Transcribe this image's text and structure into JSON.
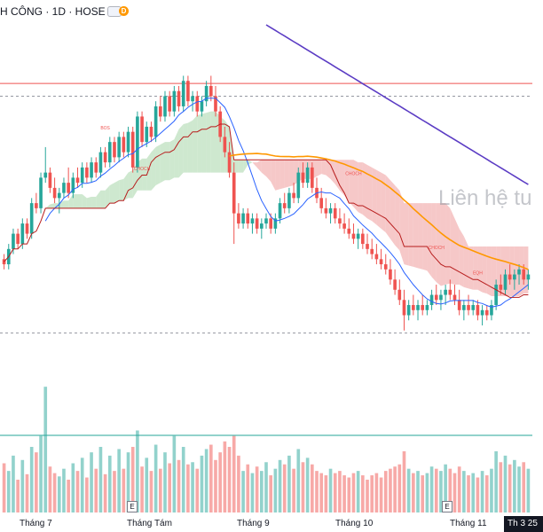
{
  "header": {
    "title": "H CÔNG · 1D · HOSE",
    "badge": "D"
  },
  "watermark": "Liên hệ tu",
  "xaxis": {
    "labels": [
      "Tháng 7",
      "Tháng Tám",
      "Tháng 9",
      "Tháng 10",
      "Tháng 11"
    ],
    "current_label": "Th 3 25",
    "event_marker": "E"
  },
  "annotations": {
    "bos": "BOS",
    "choch": "CHOCH",
    "eqh": "EQH"
  },
  "colors": {
    "up": "#26a69a",
    "down": "#ef5350",
    "ma_fast": "#2962ff",
    "ma_slow": "#ff9800",
    "ma_long": "#5b3cc4",
    "cloud_bull": "#a5d6a7",
    "cloud_bear": "#ef9a9a",
    "hline": "#ef5350",
    "teal_line": "#26a69a"
  },
  "chart_data": {
    "type": "candlestick",
    "sessions": 115,
    "candles": [
      [
        4.0,
        4.1,
        3.8,
        3.9
      ],
      [
        3.9,
        4.3,
        3.8,
        4.2
      ],
      [
        4.2,
        4.6,
        4.1,
        4.5
      ],
      [
        4.5,
        4.6,
        4.2,
        4.3
      ],
      [
        4.3,
        4.8,
        4.2,
        4.7
      ],
      [
        4.7,
        4.8,
        4.4,
        4.5
      ],
      [
        4.5,
        5.2,
        4.4,
        5.1
      ],
      [
        5.1,
        5.3,
        4.9,
        5.0
      ],
      [
        5.0,
        5.7,
        4.9,
        5.6
      ],
      [
        5.6,
        6.2,
        5.5,
        5.7
      ],
      [
        5.7,
        5.8,
        5.3,
        5.4
      ],
      [
        5.4,
        5.6,
        5.1,
        5.2
      ],
      [
        5.2,
        5.4,
        4.9,
        5.3
      ],
      [
        5.3,
        5.6,
        5.2,
        5.5
      ],
      [
        5.5,
        5.8,
        5.2,
        5.3
      ],
      [
        5.3,
        5.7,
        5.2,
        5.6
      ],
      [
        5.6,
        5.8,
        5.4,
        5.5
      ],
      [
        5.5,
        5.9,
        5.4,
        5.8
      ],
      [
        5.8,
        5.9,
        5.5,
        5.6
      ],
      [
        5.6,
        6.0,
        5.5,
        5.9
      ],
      [
        5.9,
        6.0,
        5.6,
        5.7
      ],
      [
        5.7,
        6.2,
        5.6,
        6.1
      ],
      [
        6.1,
        6.2,
        5.8,
        5.9
      ],
      [
        5.9,
        6.4,
        5.8,
        6.3
      ],
      [
        6.3,
        6.4,
        5.9,
        6.0
      ],
      [
        6.0,
        6.5,
        5.9,
        6.4
      ],
      [
        6.4,
        6.5,
        6.0,
        6.1
      ],
      [
        6.1,
        6.6,
        6.0,
        6.5
      ],
      [
        6.5,
        6.6,
        5.7,
        5.8
      ],
      [
        5.8,
        6.9,
        5.7,
        6.8
      ],
      [
        6.8,
        6.9,
        6.2,
        6.3
      ],
      [
        6.3,
        6.7,
        6.2,
        6.6
      ],
      [
        6.6,
        6.7,
        6.3,
        6.4
      ],
      [
        6.4,
        7.1,
        6.3,
        7.0
      ],
      [
        7.0,
        7.2,
        6.7,
        6.8
      ],
      [
        6.8,
        7.3,
        6.7,
        7.2
      ],
      [
        7.2,
        7.3,
        6.8,
        6.9
      ],
      [
        6.9,
        7.4,
        6.8,
        7.3
      ],
      [
        7.3,
        7.4,
        6.9,
        7.0
      ],
      [
        7.0,
        7.6,
        6.9,
        7.5
      ],
      [
        7.5,
        7.6,
        7.0,
        7.1
      ],
      [
        7.1,
        7.3,
        6.9,
        7.2
      ],
      [
        7.2,
        7.3,
        6.8,
        6.9
      ],
      [
        6.9,
        7.2,
        6.8,
        7.1
      ],
      [
        7.1,
        7.5,
        7.0,
        7.4
      ],
      [
        7.4,
        7.6,
        7.1,
        7.2
      ],
      [
        7.2,
        7.4,
        6.8,
        6.9
      ],
      [
        6.9,
        7.0,
        6.3,
        6.4
      ],
      [
        6.4,
        6.6,
        6.0,
        6.1
      ],
      [
        6.1,
        6.3,
        5.6,
        5.7
      ],
      [
        5.7,
        5.9,
        4.3,
        4.9
      ],
      [
        4.9,
        5.1,
        4.6,
        4.7
      ],
      [
        4.7,
        5.0,
        4.6,
        4.9
      ],
      [
        4.9,
        5.0,
        4.6,
        4.7
      ],
      [
        4.7,
        4.9,
        4.5,
        4.8
      ],
      [
        4.8,
        4.9,
        4.5,
        4.6
      ],
      [
        4.6,
        4.8,
        4.4,
        4.7
      ],
      [
        4.7,
        4.9,
        4.6,
        4.8
      ],
      [
        4.8,
        4.9,
        4.5,
        4.6
      ],
      [
        4.6,
        4.9,
        4.5,
        4.8
      ],
      [
        4.8,
        5.2,
        4.7,
        5.1
      ],
      [
        5.1,
        5.3,
        4.9,
        5.0
      ],
      [
        5.0,
        5.4,
        4.9,
        5.3
      ],
      [
        5.3,
        5.5,
        5.1,
        5.2
      ],
      [
        5.2,
        5.8,
        5.1,
        5.7
      ],
      [
        5.7,
        5.9,
        5.4,
        5.5
      ],
      [
        5.5,
        5.9,
        5.4,
        5.8
      ],
      [
        5.8,
        5.9,
        5.3,
        5.4
      ],
      [
        5.4,
        5.6,
        5.1,
        5.2
      ],
      [
        5.2,
        5.4,
        4.9,
        5.0
      ],
      [
        5.0,
        5.2,
        4.8,
        4.9
      ],
      [
        4.9,
        5.1,
        4.7,
        5.0
      ],
      [
        5.0,
        5.1,
        4.7,
        4.8
      ],
      [
        4.8,
        5.0,
        4.6,
        4.7
      ],
      [
        4.7,
        4.9,
        4.5,
        4.6
      ],
      [
        4.6,
        4.8,
        4.4,
        4.5
      ],
      [
        4.5,
        4.7,
        4.3,
        4.4
      ],
      [
        4.4,
        4.6,
        4.2,
        4.5
      ],
      [
        4.5,
        4.6,
        4.2,
        4.3
      ],
      [
        4.3,
        4.5,
        4.1,
        4.2
      ],
      [
        4.2,
        4.4,
        4.0,
        4.1
      ],
      [
        4.1,
        4.3,
        3.9,
        4.0
      ],
      [
        4.0,
        4.2,
        3.8,
        3.9
      ],
      [
        3.9,
        4.1,
        3.7,
        3.8
      ],
      [
        3.8,
        4.0,
        3.5,
        3.6
      ],
      [
        3.6,
        3.8,
        3.3,
        3.4
      ],
      [
        3.4,
        3.6,
        3.1,
        3.2
      ],
      [
        3.2,
        3.4,
        2.6,
        2.9
      ],
      [
        2.9,
        3.2,
        2.8,
        3.1
      ],
      [
        3.1,
        3.3,
        2.9,
        3.0
      ],
      [
        3.0,
        3.2,
        2.8,
        3.1
      ],
      [
        3.1,
        3.3,
        2.9,
        3.0
      ],
      [
        3.0,
        3.2,
        2.9,
        3.1
      ],
      [
        3.1,
        3.4,
        3.0,
        3.3
      ],
      [
        3.3,
        3.5,
        3.1,
        3.2
      ],
      [
        3.2,
        3.4,
        3.0,
        3.3
      ],
      [
        3.3,
        3.5,
        3.1,
        3.4
      ],
      [
        3.4,
        3.6,
        3.2,
        3.3
      ],
      [
        3.3,
        3.5,
        3.1,
        3.2
      ],
      [
        3.2,
        3.4,
        2.9,
        3.0
      ],
      [
        3.0,
        3.2,
        2.8,
        3.1
      ],
      [
        3.1,
        3.3,
        2.9,
        3.0
      ],
      [
        3.0,
        3.2,
        2.9,
        3.1
      ],
      [
        3.1,
        3.2,
        2.8,
        2.9
      ],
      [
        2.9,
        3.1,
        2.7,
        3.0
      ],
      [
        3.0,
        3.1,
        2.8,
        2.9
      ],
      [
        2.9,
        3.2,
        2.8,
        3.1
      ],
      [
        3.1,
        3.6,
        3.0,
        3.5
      ],
      [
        3.5,
        3.7,
        3.3,
        3.4
      ],
      [
        3.4,
        3.8,
        3.3,
        3.7
      ],
      [
        3.7,
        3.9,
        3.5,
        3.6
      ],
      [
        3.6,
        3.8,
        3.4,
        3.7
      ],
      [
        3.7,
        3.9,
        3.5,
        3.8
      ],
      [
        3.8,
        3.9,
        3.5,
        3.6
      ],
      [
        3.6,
        3.8,
        3.4,
        3.7
      ]
    ],
    "volume": [
      45,
      38,
      52,
      30,
      48,
      35,
      60,
      55,
      70,
      115,
      42,
      36,
      33,
      40,
      30,
      45,
      38,
      50,
      32,
      55,
      40,
      60,
      35,
      52,
      38,
      58,
      40,
      55,
      60,
      75,
      42,
      50,
      38,
      62,
      40,
      55,
      45,
      70,
      48,
      60,
      44,
      46,
      40,
      52,
      58,
      62,
      48,
      55,
      65,
      60,
      70,
      52,
      38,
      44,
      36,
      42,
      38,
      46,
      34,
      40,
      48,
      44,
      52,
      40,
      58,
      46,
      50,
      44,
      38,
      36,
      34,
      40,
      36,
      38,
      34,
      32,
      36,
      38,
      34,
      30,
      34,
      36,
      32,
      38,
      40,
      42,
      44,
      56,
      40,
      36,
      38,
      34,
      36,
      42,
      40,
      38,
      44,
      40,
      36,
      42,
      38,
      34,
      36,
      32,
      38,
      34,
      40,
      56,
      46,
      52,
      44,
      48,
      42,
      46,
      40
    ],
    "yrange": [
      2.3,
      8.6
    ],
    "vol_max": 120,
    "x_label_sessions": [
      8,
      36,
      56,
      80,
      103
    ],
    "indicators": {
      "ma_fast_period": 10,
      "ma_slow_period": 50
    },
    "levels": [
      {
        "label": "",
        "value": 7.45,
        "style": "solid"
      },
      {
        "label": "",
        "value": 7.2,
        "style": "dashed"
      },
      {
        "label": "",
        "value": 2.55,
        "style": "dashed"
      }
    ]
  }
}
